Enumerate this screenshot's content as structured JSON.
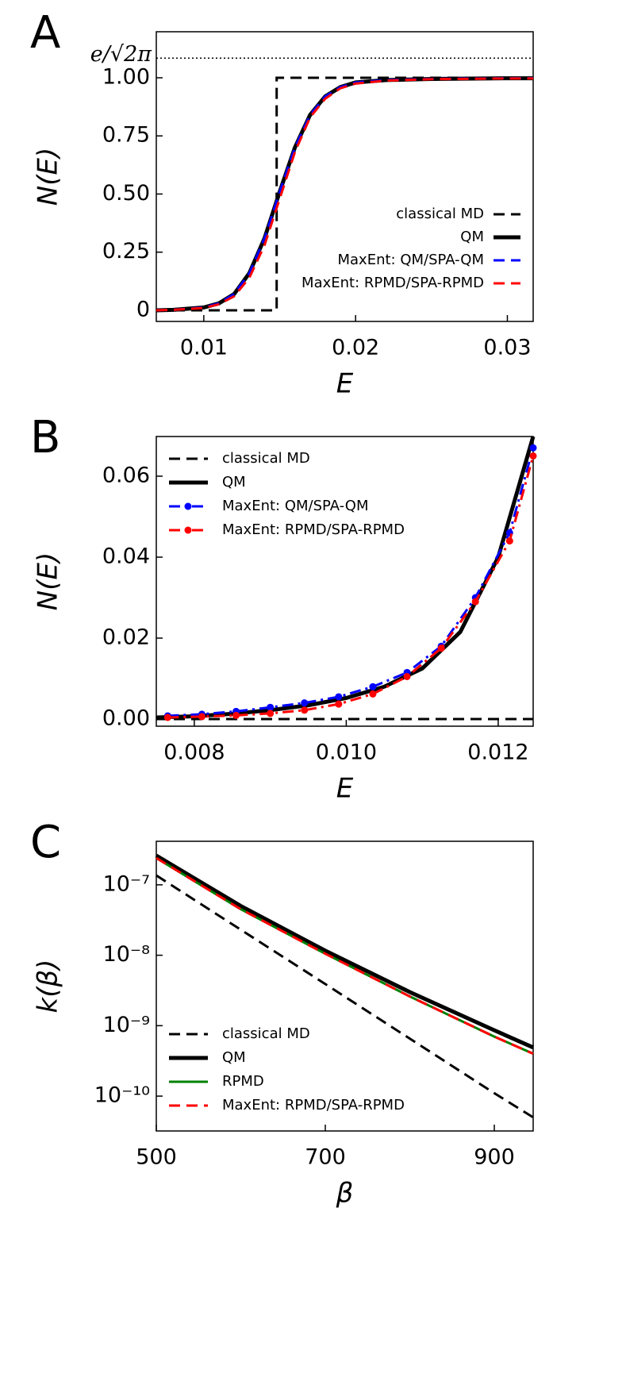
{
  "chart_data": [
    {
      "type": "line",
      "panel_label": "A",
      "xlabel": "E",
      "ylabel": "N(E)",
      "xlim": [
        0.00687,
        0.0317
      ],
      "ylim": [
        -0.048,
        1.198
      ],
      "xticks": [
        0.01,
        0.02,
        0.03
      ],
      "yticks": [
        0,
        0.25,
        {
          "value": 0.5,
          "label": "0.50"
        },
        0.75,
        {
          "value": 1,
          "label": "1.00"
        }
      ],
      "hline": {
        "value": 1.0844,
        "label": "e/√2π"
      },
      "legend": "lower right",
      "series": [
        {
          "name": "classical MD",
          "color": "#000000",
          "style": "dashed",
          "x": [
            0.00687,
            0.0148,
            0.0148,
            0.0317
          ],
          "values": [
            0,
            0,
            1,
            1
          ]
        },
        {
          "name": "QM",
          "color": "#000000",
          "style": "solid",
          "x": [
            0.00687,
            0.008,
            0.01,
            0.011,
            0.012,
            0.013,
            0.014,
            0.015,
            0.016,
            0.017,
            0.018,
            0.019,
            0.02,
            0.022,
            0.025,
            0.03,
            0.0317
          ],
          "values": [
            0,
            0.002,
            0.012,
            0.03,
            0.07,
            0.16,
            0.31,
            0.51,
            0.7,
            0.84,
            0.92,
            0.96,
            0.98,
            0.99,
            0.995,
            0.998,
            0.998
          ]
        },
        {
          "name": "MaxEnt: QM/SPA-QM",
          "color": "#0000ff",
          "style": "dashed",
          "x": [
            0.00687,
            0.008,
            0.01,
            0.011,
            0.012,
            0.013,
            0.014,
            0.015,
            0.016,
            0.017,
            0.018,
            0.019,
            0.02,
            0.022,
            0.025,
            0.03,
            0.0317
          ],
          "values": [
            0,
            0.002,
            0.012,
            0.03,
            0.07,
            0.16,
            0.31,
            0.51,
            0.7,
            0.84,
            0.92,
            0.96,
            0.98,
            0.99,
            0.995,
            0.998,
            0.998
          ]
        },
        {
          "name": "MaxEnt: RPMD/SPA-RPMD",
          "color": "#ff0000",
          "style": "dashed",
          "x": [
            0.00687,
            0.008,
            0.01,
            0.011,
            0.012,
            0.013,
            0.014,
            0.015,
            0.016,
            0.017,
            0.018,
            0.019,
            0.02,
            0.022,
            0.025,
            0.03,
            0.0317
          ],
          "values": [
            0,
            0.002,
            0.01,
            0.026,
            0.06,
            0.14,
            0.28,
            0.48,
            0.68,
            0.83,
            0.91,
            0.955,
            0.975,
            0.988,
            0.994,
            0.997,
            0.997
          ]
        }
      ]
    },
    {
      "type": "line",
      "panel_label": "B",
      "xlabel": "E",
      "ylabel": "N(E)",
      "xlim": [
        0.0075,
        0.01246
      ],
      "ylim": [
        -0.00176,
        0.0698
      ],
      "xticks": [
        0.008,
        {
          "value": 0.01,
          "label": "0.010"
        },
        0.012
      ],
      "yticks": [
        {
          "value": 0,
          "label": "0.00"
        },
        0.02,
        0.04,
        0.06
      ],
      "legend": "upper left",
      "series": [
        {
          "name": "classical MD",
          "color": "#000000",
          "style": "dashed",
          "x": [
            0.0075,
            0.01246
          ],
          "values": [
            0,
            0
          ]
        },
        {
          "name": "QM",
          "color": "#000000",
          "style": "solid",
          "x": [
            0.0075,
            0.008,
            0.0085,
            0.009,
            0.0095,
            0.01,
            0.0105,
            0.011,
            0.0115,
            0.012,
            0.01246
          ],
          "values": [
            0.0004,
            0.0007,
            0.0013,
            0.0022,
            0.0034,
            0.0052,
            0.008,
            0.0125,
            0.0215,
            0.04,
            0.0698
          ]
        },
        {
          "name": "MaxEnt: QM/SPA-QM",
          "color": "#0000ff",
          "style": "dashdot",
          "marker": "o",
          "x": [
            0.00765,
            0.0081,
            0.00855,
            0.009,
            0.00945,
            0.0099,
            0.01035,
            0.0108,
            0.01125,
            0.0117,
            0.01215,
            0.01246
          ],
          "values": [
            0.0008,
            0.0012,
            0.0019,
            0.0029,
            0.004,
            0.0055,
            0.008,
            0.0115,
            0.018,
            0.03,
            0.046,
            0.067
          ]
        },
        {
          "name": "MaxEnt: RPMD/SPA-RPMD",
          "color": "#ff0000",
          "style": "dashdot",
          "marker": "o",
          "x": [
            0.00765,
            0.0081,
            0.00855,
            0.009,
            0.00945,
            0.0099,
            0.01035,
            0.0108,
            0.01125,
            0.0117,
            0.01215,
            0.01246
          ],
          "values": [
            0.0004,
            0.0006,
            0.0009,
            0.0014,
            0.0022,
            0.0037,
            0.0062,
            0.0105,
            0.0175,
            0.029,
            0.044,
            0.065
          ]
        }
      ]
    },
    {
      "type": "line",
      "panel_label": "C",
      "xlabel": "β",
      "ylabel": "k(β)",
      "yscale": "log",
      "xlim": [
        500,
        946
      ],
      "ylim": [
        3.2e-11,
        4.15e-07
      ],
      "xticks": [
        500,
        700,
        900
      ],
      "yticks": [
        {
          "value": 1e-07,
          "label": "10⁻⁷"
        },
        {
          "value": 1e-08,
          "label": "10⁻⁸"
        },
        {
          "value": 1e-09,
          "label": "10⁻⁹"
        },
        {
          "value": 1e-10,
          "label": "10⁻¹⁰"
        }
      ],
      "legend": "lower left",
      "series": [
        {
          "name": "classical MD",
          "color": "#000000",
          "style": "dashed",
          "x": [
            500,
            700,
            900,
            946
          ],
          "values": [
            1.36e-07,
            3.9e-09,
            1.1e-10,
            5e-11
          ]
        },
        {
          "name": "QM",
          "color": "#000000",
          "style": "solid",
          "x": [
            500,
            600,
            700,
            800,
            900,
            946
          ],
          "values": [
            2.6e-07,
            5e-08,
            1.16e-08,
            3e-09,
            8.6e-10,
            4.9e-10
          ]
        },
        {
          "name": "RPMD",
          "color": "#008000",
          "style": "solid",
          "x": [
            500,
            600,
            700,
            800,
            900,
            946
          ],
          "values": [
            2.4e-07,
            4.5e-08,
            1.05e-08,
            2.6e-09,
            7e-10,
            4e-10
          ]
        },
        {
          "name": "MaxEnt: RPMD/SPA-RPMD",
          "color": "#ff0000",
          "style": "dashed",
          "x": [
            500,
            600,
            700,
            800,
            900,
            946
          ],
          "values": [
            2.4e-07,
            4.5e-08,
            1.05e-08,
            2.6e-09,
            7e-10,
            4e-10
          ]
        }
      ]
    }
  ]
}
